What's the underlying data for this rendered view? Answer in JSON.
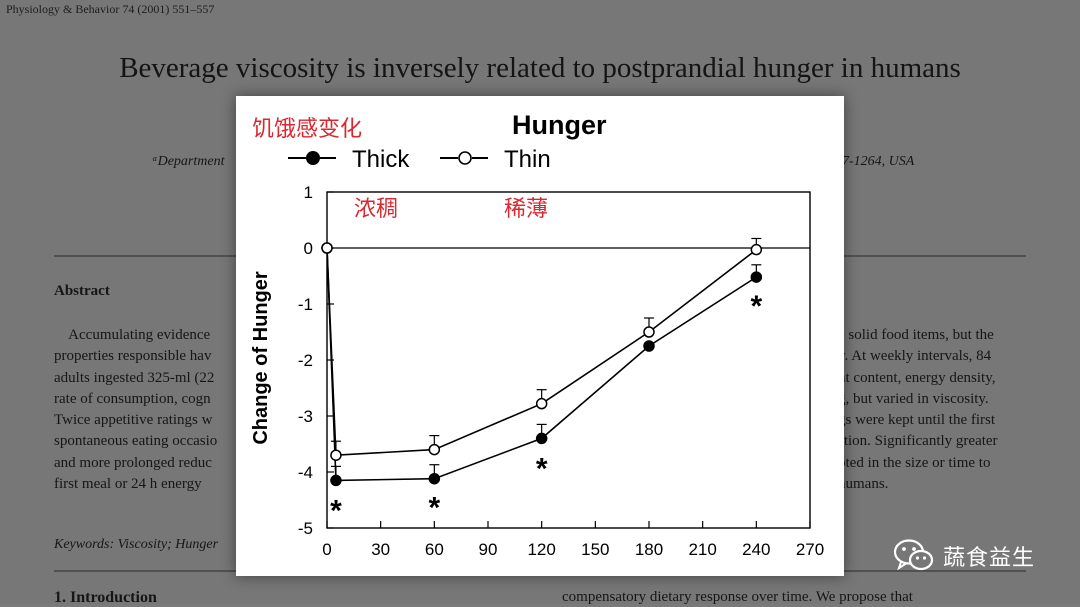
{
  "paper": {
    "journal": "Physiology & Behavior 74 (2001) 551–557",
    "title": "Beverage viscosity is inversely related to postprandial hunger in humans",
    "affiliation_left": "ᵃDepartment",
    "affiliation_right": "7-1264, USA",
    "abstract_heading": "Abstract",
    "abstract_left": "    Accumulating evidence\nproperties responsible hav\nadults ingested 325-ml (22\nrate of consumption, cogn\nTwice appetitive ratings w\nspontaneous eating occasio\nand more prolonged reduc\nfirst meal or 24 h energy",
    "abstract_right": "e solid food items, but the\ny. At weekly intervals, 84\nnt content, energy density,\ng, but varied in viscosity.\ngs were kept until the first\nstion. Significantly greater\noted in the size or time to\nhumans.",
    "keywords": "Keywords: Viscosity; Hunger",
    "intro_heading": "1. Introduction",
    "intro_right": "compensatory dietary response over time. We propose that"
  },
  "annotations": {
    "title_cn": "饥饿感变化",
    "thick_cn": "浓稠",
    "thin_cn": "稀薄"
  },
  "watermark": {
    "text": "蔬食益生",
    "icon": "wechat-icon"
  },
  "chart_data": {
    "type": "line",
    "title": "Hunger",
    "xlabel": "",
    "ylabel": "Change of Hunger",
    "xlim": [
      0,
      270
    ],
    "ylim": [
      -5,
      1
    ],
    "xticks": [
      0,
      30,
      60,
      90,
      120,
      150,
      180,
      210,
      240,
      270
    ],
    "yticks": [
      1,
      0,
      -1,
      -2,
      -3,
      -4,
      -5
    ],
    "reference_line": 0,
    "legend_placement": "top",
    "series": [
      {
        "name": "Thick",
        "marker": "filled-circle",
        "x": [
          0,
          5,
          60,
          120,
          180,
          240
        ],
        "y": [
          0,
          -4.15,
          -4.12,
          -3.4,
          -1.75,
          -0.52
        ],
        "err": [
          0,
          0.25,
          0.25,
          0.25,
          0,
          0.22
        ]
      },
      {
        "name": "Thin",
        "marker": "open-circle",
        "x": [
          0,
          5,
          60,
          120,
          180,
          240
        ],
        "y": [
          0,
          -3.7,
          -3.6,
          -2.78,
          -1.5,
          -0.03
        ],
        "err": [
          0,
          0.25,
          0.25,
          0.25,
          0.25,
          0.2
        ]
      }
    ],
    "significance": [
      {
        "x": 5,
        "y": -4.65,
        "label": "*"
      },
      {
        "x": 60,
        "y": -4.6,
        "label": "*"
      },
      {
        "x": 120,
        "y": -3.9,
        "label": "*"
      },
      {
        "x": 240,
        "y": -1.0,
        "label": "*"
      }
    ],
    "colors": {
      "line": "#000000",
      "annotation": "#d9282f"
    }
  }
}
